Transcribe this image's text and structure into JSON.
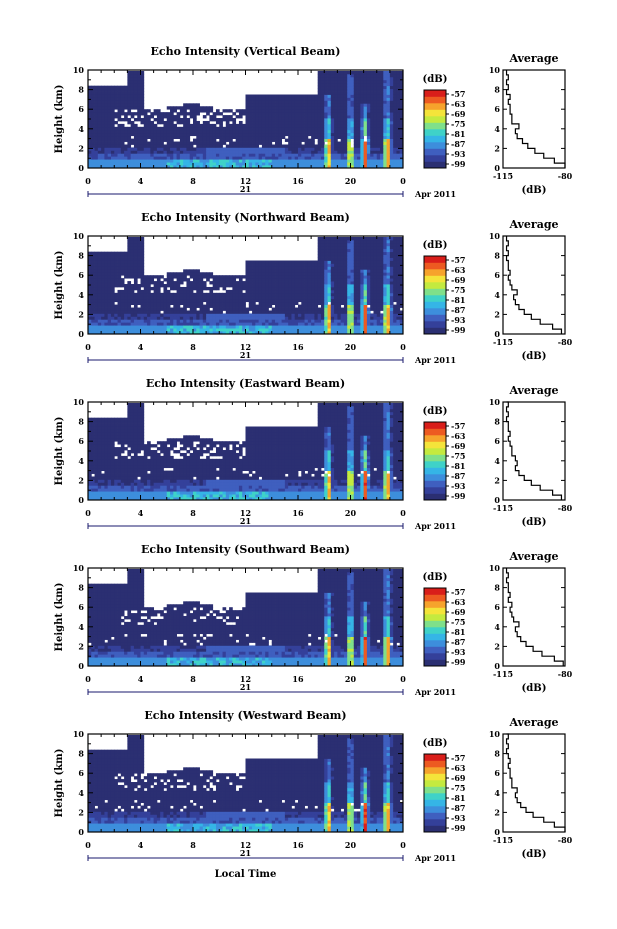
{
  "chart_data": {
    "type": "heatmap",
    "figure": {
      "shared_xlabel": "Local Time",
      "date_label": "Apr 2011",
      "day_label": "21",
      "x_range": [
        0,
        24
      ],
      "x_ticks": [
        "0",
        "4",
        "8",
        "12",
        "16",
        "20",
        "0"
      ],
      "y_range": [
        0,
        10
      ],
      "y_ticks": [
        "0",
        "2",
        "4",
        "6",
        "8",
        "10"
      ],
      "ylabel": "Height (km)",
      "colorbar_unit": "(dB)",
      "colorbar_ticks": [
        "-57",
        "-63",
        "-69",
        "-75",
        "-81",
        "-87",
        "-93",
        "-99"
      ],
      "colorbar_range": [
        -99,
        -57
      ],
      "colors": [
        "#2b2f72",
        "#34409a",
        "#3f5fbf",
        "#3d8edc",
        "#35b5e6",
        "#3fd2c8",
        "#7fe08a",
        "#c4ea3f",
        "#f4e43a",
        "#f6a32c",
        "#ed5a21",
        "#d91e1a"
      ],
      "average": {
        "title": "Average",
        "xlabel": "(dB)",
        "x_ticks": [
          "-115",
          "-80"
        ],
        "x_range": [
          -115,
          -80
        ],
        "y_ticks": [
          "0",
          "2",
          "4",
          "6",
          "8",
          "10"
        ]
      }
    },
    "panels": [
      {
        "title": "Echo Intensity (Vertical Beam)",
        "profile": {
          "height": [
            0,
            0.5,
            1,
            1.5,
            2,
            2.5,
            3,
            3.5,
            4,
            4.5,
            5,
            5.5,
            6,
            6.5,
            7,
            7.5,
            8,
            8.5,
            9,
            9.5,
            10
          ],
          "avg_db": [
            -80,
            -86,
            -92,
            -97,
            -101,
            -104,
            -107,
            -108,
            -106,
            -110,
            -110,
            -111,
            -111,
            -112,
            -111,
            -113,
            -112,
            -113,
            -112,
            -113,
            -113
          ]
        }
      },
      {
        "title": "Echo Intensity (Northward Beam)",
        "profile": {
          "height": [
            0,
            0.5,
            1,
            1.5,
            2,
            2.5,
            3,
            3.5,
            4,
            4.5,
            5,
            5.5,
            6,
            6.5,
            7,
            7.5,
            8,
            8.5,
            9,
            9.5,
            10
          ],
          "avg_db": [
            -82,
            -87,
            -94,
            -99,
            -103,
            -106,
            -108,
            -109,
            -107,
            -110,
            -111,
            -112,
            -111,
            -112,
            -112,
            -113,
            -112,
            -113,
            -112,
            -113,
            -113
          ]
        }
      },
      {
        "title": "Echo Intensity (Eastward Beam)",
        "profile": {
          "height": [
            0,
            0.5,
            1,
            1.5,
            2,
            2.5,
            3,
            3.5,
            4,
            4.5,
            5,
            5.5,
            6,
            6.5,
            7,
            7.5,
            8,
            8.5,
            9,
            9.5,
            10
          ],
          "avg_db": [
            -82,
            -87,
            -94,
            -99,
            -103,
            -106,
            -108,
            -107,
            -108,
            -110,
            -110,
            -111,
            -112,
            -111,
            -112,
            -112,
            -113,
            -112,
            -113,
            -112,
            -113
          ]
        }
      },
      {
        "title": "Echo Intensity (Southward Beam)",
        "profile": {
          "height": [
            0,
            0.5,
            1,
            1.5,
            2,
            2.5,
            3,
            3.5,
            4,
            4.5,
            5,
            5.5,
            6,
            6.5,
            7,
            7.5,
            8,
            8.5,
            9,
            9.5,
            10
          ],
          "avg_db": [
            -81,
            -86,
            -93,
            -98,
            -102,
            -105,
            -107,
            -108,
            -106,
            -109,
            -110,
            -111,
            -110,
            -112,
            -111,
            -112,
            -112,
            -113,
            -112,
            -113,
            -113
          ]
        }
      },
      {
        "title": "Echo Intensity (Westward Beam)",
        "profile": {
          "height": [
            0,
            0.5,
            1,
            1.5,
            2,
            2.5,
            3,
            3.5,
            4,
            4.5,
            5,
            5.5,
            6,
            6.5,
            7,
            7.5,
            8,
            8.5,
            9,
            9.5,
            10
          ],
          "avg_db": [
            -80,
            -86,
            -92,
            -98,
            -102,
            -105,
            -107,
            -108,
            -107,
            -110,
            -110,
            -111,
            -111,
            -112,
            -111,
            -112,
            -113,
            -112,
            -113,
            -112,
            -113
          ]
        }
      }
    ]
  }
}
